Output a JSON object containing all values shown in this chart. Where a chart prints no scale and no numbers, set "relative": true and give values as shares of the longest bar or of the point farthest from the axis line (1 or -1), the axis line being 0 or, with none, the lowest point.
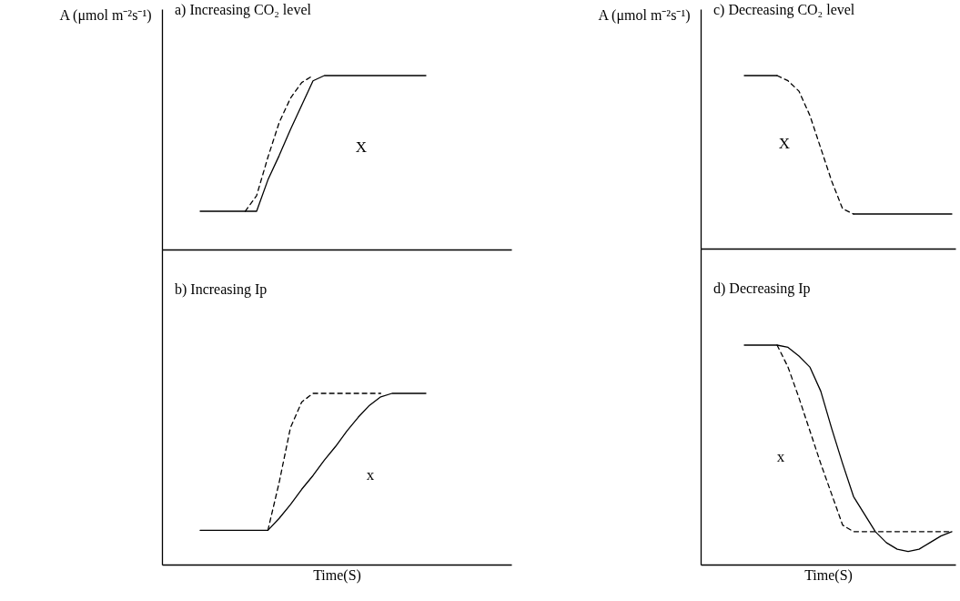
{
  "chart_data": [
    {
      "type": "line",
      "title": "a) Increasing CO₂ level",
      "ylabel": "A (μmol m⁻²s⁻¹)",
      "relative": true,
      "tick_labels": false,
      "annotations": [
        "X"
      ],
      "categories": [
        null,
        null,
        null,
        null,
        null,
        null,
        null,
        null,
        null,
        null,
        null,
        null,
        null,
        null,
        null,
        null,
        null,
        null,
        null,
        null,
        null
      ],
      "series": [
        {
          "color": "#000000",
          "line_style": "solid",
          "values": [
            0.22,
            0.22,
            0.22,
            0.22,
            0.22,
            0.22,
            0.4,
            0.54,
            0.69,
            0.83,
            0.97,
            1,
            1,
            1,
            1,
            1,
            1,
            1,
            1,
            1,
            1
          ]
        },
        {
          "color": "#000000",
          "line_style": "dashed",
          "values": [
            null,
            null,
            null,
            null,
            0.22,
            0.31,
            0.53,
            0.73,
            0.87,
            0.96,
            1,
            null,
            null,
            null,
            null,
            null,
            null,
            null,
            null,
            null,
            null
          ]
        }
      ]
    },
    {
      "type": "line",
      "title": "c) Decreasing CO₂ level",
      "ylabel": "A (μmol m⁻²s⁻¹)",
      "relative": true,
      "tick_labels": false,
      "annotations": [
        "X"
      ],
      "categories": [
        null,
        null,
        null,
        null,
        null,
        null,
        null,
        null,
        null,
        null,
        null,
        null,
        null,
        null,
        null,
        null,
        null,
        null,
        null,
        null
      ],
      "series": [
        {
          "color": "#000000",
          "line_style": "solid",
          "values": [
            1,
            1,
            1,
            1,
            null,
            null,
            null,
            null,
            null,
            null,
            0.2,
            0.2,
            0.2,
            0.2,
            0.2,
            0.2,
            0.2,
            0.2,
            0.2,
            0.2
          ]
        },
        {
          "color": "#000000",
          "line_style": "dashed",
          "values": [
            null,
            null,
            null,
            1,
            0.97,
            0.91,
            0.77,
            0.58,
            0.39,
            0.23,
            0.2,
            null,
            null,
            null,
            null,
            null,
            null,
            null,
            null,
            null
          ]
        }
      ]
    },
    {
      "type": "line",
      "title": "b) Increasing Ip",
      "xlabel": "Time(S)",
      "relative": true,
      "tick_labels": false,
      "annotations": [
        "x"
      ],
      "categories": [
        null,
        null,
        null,
        null,
        null,
        null,
        null,
        null,
        null,
        null,
        null,
        null,
        null,
        null,
        null,
        null,
        null,
        null,
        null,
        null,
        null
      ],
      "series": [
        {
          "color": "#000000",
          "line_style": "solid",
          "values": [
            0.2,
            0.2,
            0.2,
            0.2,
            0.2,
            0.2,
            0.2,
            0.27,
            0.35,
            0.44,
            0.52,
            0.61,
            0.69,
            0.78,
            0.86,
            0.93,
            0.98,
            1,
            1,
            1,
            1
          ]
        },
        {
          "color": "#000000",
          "line_style": "dashed",
          "values": [
            null,
            null,
            null,
            null,
            null,
            null,
            0.2,
            0.48,
            0.8,
            0.95,
            1,
            1,
            1,
            1,
            1,
            1,
            1,
            null,
            null,
            null,
            null
          ]
        }
      ]
    },
    {
      "type": "line",
      "title": "d) Decreasing Ip",
      "xlabel": "Time(S)",
      "relative": true,
      "tick_labels": false,
      "annotations": [
        "x"
      ],
      "categories": [
        null,
        null,
        null,
        null,
        null,
        null,
        null,
        null,
        null,
        null,
        null,
        null,
        null,
        null,
        null,
        null,
        null,
        null,
        null,
        null
      ],
      "series": [
        {
          "color": "#000000",
          "line_style": "solid",
          "values": [
            1,
            1,
            1,
            1,
            0.99,
            0.95,
            0.9,
            0.79,
            0.62,
            0.46,
            0.31,
            0.23,
            0.15,
            0.1,
            0.07,
            0.06,
            0.07,
            0.1,
            0.13,
            0.15
          ]
        },
        {
          "color": "#000000",
          "line_style": "dashed",
          "values": [
            null,
            null,
            null,
            1,
            0.9,
            0.76,
            0.61,
            0.46,
            0.32,
            0.18,
            0.15,
            0.15,
            0.15,
            0.15,
            0.15,
            0.15,
            0.15,
            0.15,
            0.15,
            0.15
          ]
        }
      ]
    }
  ]
}
